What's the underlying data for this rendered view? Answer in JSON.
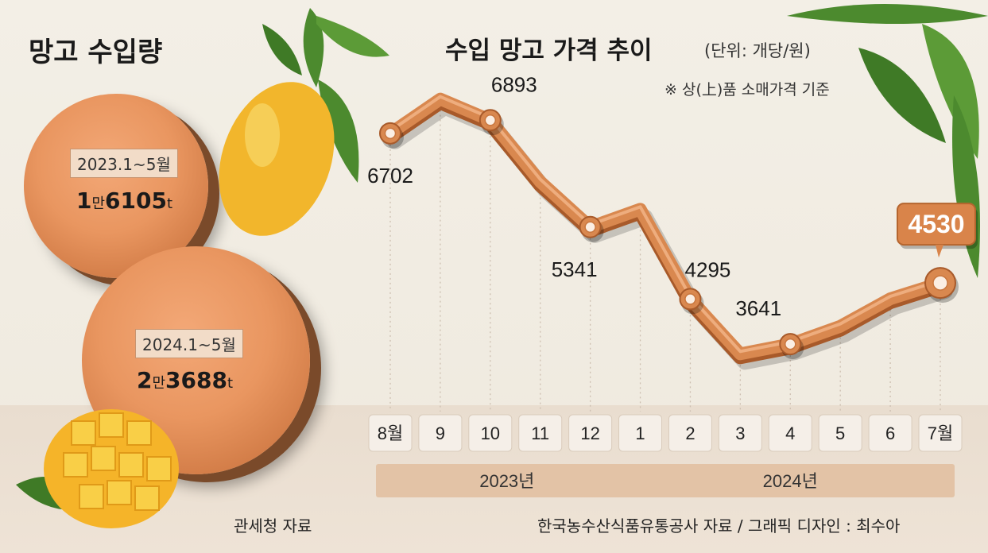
{
  "left_panel": {
    "title": "망고 수입량",
    "items": [
      {
        "period": "2023.1~5월",
        "amount_prefix": "1",
        "amount_unit_man": "만",
        "amount_main": "6105",
        "amount_unit": "t"
      },
      {
        "period": "2024.1~5월",
        "amount_prefix": "2",
        "amount_unit_man": "만",
        "amount_main": "3688",
        "amount_unit": "t"
      }
    ],
    "source": "관세청 자료"
  },
  "header": {
    "title": "수입 망고 가격 추이",
    "unit": "(단위: 개당/원)",
    "note": "※ 상(上)품 소매가격 기준"
  },
  "source_right": "한국농수산식품유통공사 자료 / 그래픽 디자인 : 최수아",
  "colors": {
    "line": "#d9884f",
    "line_dark": "#a85a2a",
    "callout": "#d9844a"
  },
  "chart_data": {
    "type": "line",
    "title": "수입 망고 가격 추이",
    "categories": [
      "8월",
      "9",
      "10",
      "11",
      "12",
      "1",
      "2",
      "3",
      "4",
      "5",
      "6",
      "7월"
    ],
    "year_groups": [
      {
        "label": "2023년",
        "categories": [
          "8월",
          "9",
          "10",
          "11",
          "12"
        ]
      },
      {
        "label": "2024년",
        "categories": [
          "1",
          "2",
          "3",
          "4",
          "5",
          "6",
          "7월"
        ]
      }
    ],
    "values": [
      6702,
      7200,
      6893,
      6000,
      5341,
      5600,
      4295,
      3500,
      3641,
      3900,
      4300,
      4530
    ],
    "labeled_points": [
      0,
      2,
      4,
      6,
      8,
      11
    ],
    "highlight_point": 11,
    "ylim": [
      2800,
      7600
    ],
    "xlabel": "",
    "ylabel": ""
  }
}
